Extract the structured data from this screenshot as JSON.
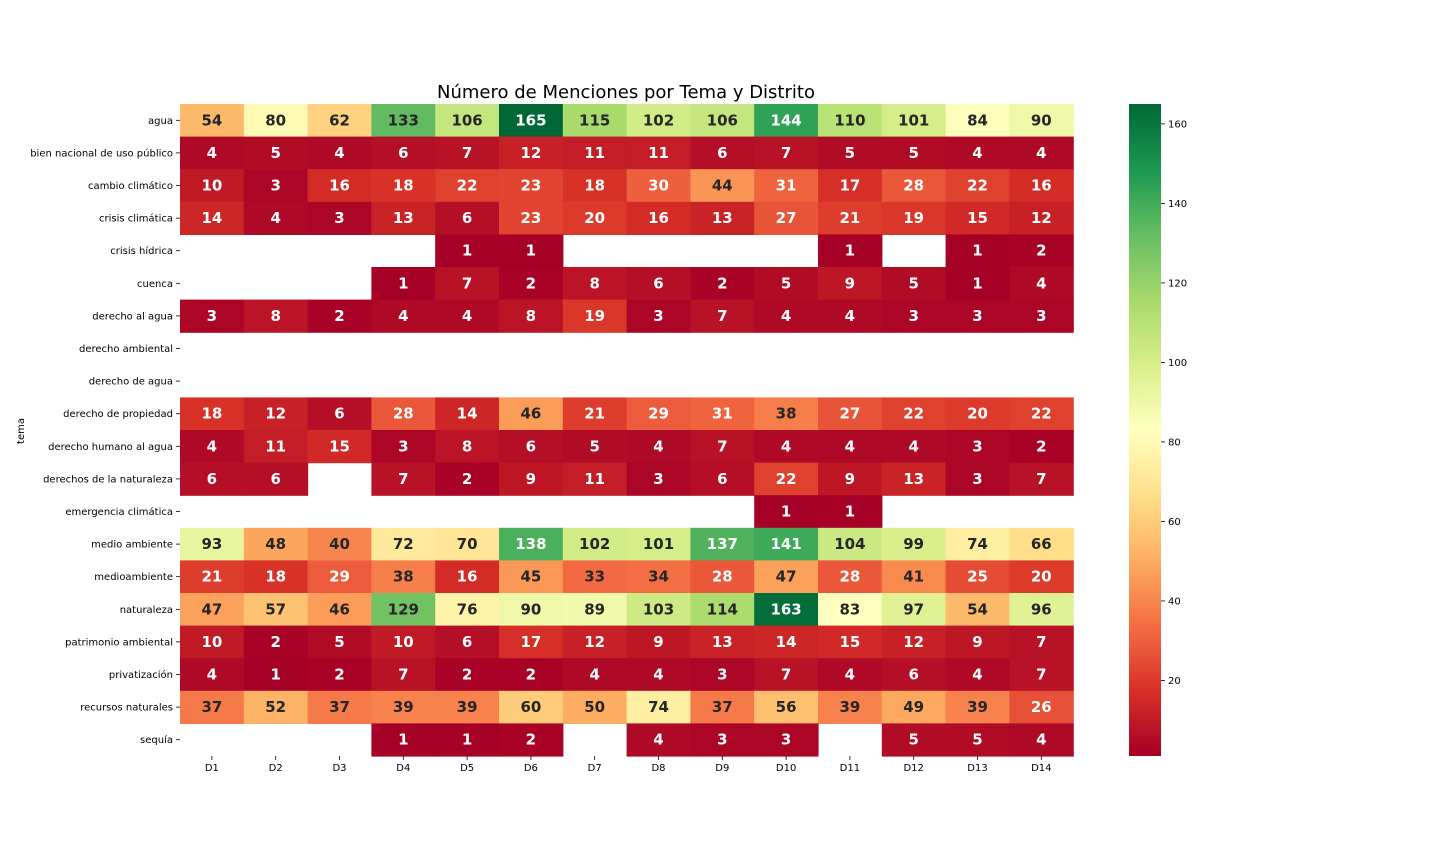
{
  "chart_data": {
    "type": "heatmap",
    "title": "Número de Menciones por Tema y Distrito",
    "ylabel": "tema",
    "xlabel": "",
    "x": [
      "D1",
      "D2",
      "D3",
      "D4",
      "D5",
      "D6",
      "D7",
      "D8",
      "D9",
      "D10",
      "D11",
      "D12",
      "D13",
      "D14"
    ],
    "y": [
      "agua",
      "bien nacional de uso público",
      "cambio climático",
      "crisis climática",
      "crisis hídrica",
      "cuenca",
      "derecho al agua",
      "derecho ambiental",
      "derecho de agua",
      "derecho de propiedad",
      "derecho humano al agua",
      "derechos de la naturaleza",
      "emergencia climática",
      "medio ambiente",
      "medioambiente",
      "naturaleza",
      "patrimonio ambiental",
      "privatización",
      "recursos naturales",
      "sequía"
    ],
    "values": [
      [
        54,
        80,
        62,
        133,
        106,
        165,
        115,
        102,
        106,
        144,
        110,
        101,
        84,
        90
      ],
      [
        4,
        5,
        4,
        6,
        7,
        12,
        11,
        11,
        6,
        7,
        5,
        5,
        4,
        4
      ],
      [
        10,
        3,
        16,
        18,
        22,
        23,
        18,
        30,
        44,
        31,
        17,
        28,
        22,
        16
      ],
      [
        14,
        4,
        3,
        13,
        6,
        23,
        20,
        16,
        13,
        27,
        21,
        19,
        15,
        12
      ],
      [
        null,
        null,
        null,
        null,
        1,
        1,
        null,
        null,
        null,
        null,
        1,
        null,
        1,
        2
      ],
      [
        null,
        null,
        null,
        1,
        7,
        2,
        8,
        6,
        2,
        5,
        9,
        5,
        1,
        4
      ],
      [
        3,
        8,
        2,
        4,
        4,
        8,
        19,
        3,
        7,
        4,
        4,
        3,
        3,
        3
      ],
      [
        null,
        null,
        null,
        null,
        null,
        null,
        null,
        null,
        null,
        null,
        null,
        null,
        null,
        null
      ],
      [
        null,
        null,
        null,
        null,
        null,
        null,
        null,
        null,
        null,
        null,
        null,
        null,
        null,
        null
      ],
      [
        18,
        12,
        6,
        28,
        14,
        46,
        21,
        29,
        31,
        38,
        27,
        22,
        20,
        22
      ],
      [
        4,
        11,
        15,
        3,
        8,
        6,
        5,
        4,
        7,
        4,
        4,
        4,
        3,
        2
      ],
      [
        6,
        6,
        null,
        7,
        2,
        9,
        11,
        3,
        6,
        22,
        9,
        13,
        3,
        7
      ],
      [
        null,
        null,
        null,
        null,
        null,
        null,
        null,
        null,
        null,
        1,
        1,
        null,
        null,
        null
      ],
      [
        93,
        48,
        40,
        72,
        70,
        138,
        102,
        101,
        137,
        141,
        104,
        99,
        74,
        66
      ],
      [
        21,
        18,
        29,
        38,
        16,
        45,
        33,
        34,
        28,
        47,
        28,
        41,
        25,
        20
      ],
      [
        47,
        57,
        46,
        129,
        76,
        90,
        89,
        103,
        114,
        163,
        83,
        97,
        54,
        96
      ],
      [
        10,
        2,
        5,
        10,
        6,
        17,
        12,
        9,
        13,
        14,
        15,
        12,
        9,
        7
      ],
      [
        4,
        1,
        2,
        7,
        2,
        2,
        4,
        4,
        3,
        7,
        4,
        6,
        4,
        7
      ],
      [
        37,
        52,
        37,
        39,
        39,
        60,
        50,
        74,
        37,
        56,
        39,
        49,
        39,
        26
      ],
      [
        null,
        null,
        null,
        1,
        1,
        2,
        null,
        4,
        3,
        3,
        null,
        5,
        5,
        4
      ]
    ],
    "colormap": "RdYlGn",
    "color_range": [
      1,
      165
    ],
    "colorbar_ticks": [
      20,
      40,
      60,
      80,
      100,
      120,
      140,
      160
    ],
    "missing_color": "#ffffff"
  }
}
